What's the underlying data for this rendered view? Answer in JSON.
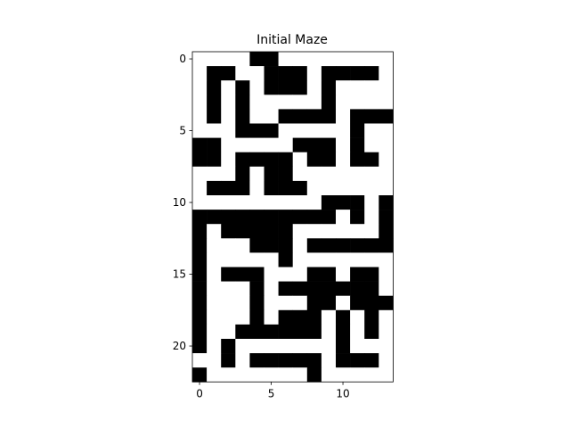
{
  "chart_data": {
    "type": "heatmap",
    "title": "Initial Maze",
    "xlabel": "",
    "ylabel": "",
    "colormap": {
      "1": "#000000",
      "0": "#ffffff"
    },
    "x_ticks": [
      0,
      5,
      10
    ],
    "y_ticks": [
      0,
      5,
      10,
      15,
      20
    ],
    "xlim": [
      -0.5,
      13.5
    ],
    "ylim": [
      22.5,
      -0.5
    ],
    "grid": [
      [
        0,
        0,
        0,
        0,
        1,
        1,
        0,
        0,
        0,
        0,
        0,
        0,
        0,
        0
      ],
      [
        0,
        1,
        1,
        0,
        0,
        1,
        1,
        1,
        0,
        1,
        1,
        1,
        1,
        0
      ],
      [
        0,
        1,
        0,
        1,
        0,
        1,
        1,
        1,
        0,
        1,
        0,
        0,
        0,
        0
      ],
      [
        0,
        1,
        0,
        1,
        0,
        0,
        0,
        0,
        0,
        1,
        0,
        0,
        0,
        0
      ],
      [
        0,
        1,
        0,
        1,
        0,
        0,
        1,
        1,
        1,
        1,
        0,
        1,
        1,
        1
      ],
      [
        0,
        0,
        0,
        1,
        1,
        1,
        0,
        0,
        0,
        0,
        0,
        1,
        0,
        0
      ],
      [
        1,
        1,
        0,
        0,
        0,
        0,
        0,
        1,
        1,
        1,
        0,
        1,
        0,
        0
      ],
      [
        1,
        1,
        0,
        1,
        1,
        1,
        1,
        0,
        1,
        1,
        0,
        1,
        1,
        0
      ],
      [
        0,
        0,
        0,
        1,
        0,
        1,
        1,
        0,
        0,
        0,
        0,
        0,
        0,
        0
      ],
      [
        0,
        1,
        1,
        1,
        0,
        1,
        1,
        1,
        0,
        0,
        0,
        0,
        0,
        0
      ],
      [
        0,
        0,
        0,
        0,
        0,
        0,
        0,
        0,
        0,
        1,
        1,
        1,
        0,
        1
      ],
      [
        1,
        1,
        1,
        1,
        1,
        1,
        1,
        1,
        1,
        1,
        0,
        1,
        0,
        1
      ],
      [
        1,
        0,
        1,
        1,
        1,
        1,
        1,
        0,
        0,
        0,
        0,
        0,
        0,
        1
      ],
      [
        1,
        0,
        0,
        0,
        1,
        1,
        1,
        0,
        1,
        1,
        1,
        1,
        1,
        1
      ],
      [
        1,
        0,
        0,
        0,
        0,
        0,
        1,
        0,
        0,
        0,
        0,
        0,
        0,
        0
      ],
      [
        1,
        0,
        1,
        1,
        1,
        0,
        0,
        0,
        1,
        1,
        0,
        1,
        1,
        0
      ],
      [
        1,
        0,
        0,
        0,
        1,
        0,
        1,
        1,
        1,
        1,
        1,
        1,
        1,
        0
      ],
      [
        1,
        0,
        0,
        0,
        1,
        0,
        0,
        0,
        1,
        1,
        0,
        1,
        1,
        1
      ],
      [
        1,
        0,
        0,
        0,
        1,
        0,
        1,
        1,
        1,
        0,
        1,
        0,
        1,
        0
      ],
      [
        1,
        0,
        0,
        1,
        1,
        1,
        1,
        1,
        1,
        0,
        1,
        0,
        1,
        0
      ],
      [
        1,
        0,
        1,
        0,
        0,
        0,
        0,
        0,
        0,
        0,
        1,
        0,
        0,
        0
      ],
      [
        0,
        0,
        1,
        0,
        1,
        1,
        1,
        1,
        1,
        0,
        1,
        1,
        1,
        0
      ],
      [
        1,
        0,
        0,
        0,
        0,
        0,
        0,
        0,
        1,
        0,
        0,
        0,
        0,
        0
      ]
    ]
  }
}
